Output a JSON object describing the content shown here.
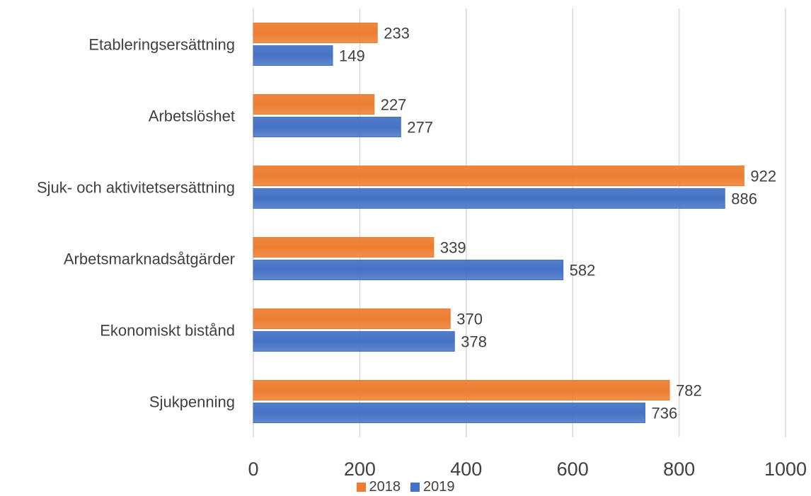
{
  "chart_data": {
    "type": "bar",
    "orientation": "horizontal",
    "categories": [
      "Etableringsersättning",
      "Arbetslöshet",
      "Sjuk- och aktivitetsersättning",
      "Arbetsmarknadsåtgärder",
      "Ekonomiskt bistånd",
      "Sjukpenning"
    ],
    "series": [
      {
        "name": "2018",
        "values": [
          233,
          227,
          922,
          339,
          370,
          782
        ],
        "color": "#ED7D31"
      },
      {
        "name": "2019",
        "values": [
          149,
          277,
          886,
          582,
          378,
          736
        ],
        "color": "#4472C4"
      }
    ],
    "xticks": [
      "0",
      "200",
      "400",
      "600",
      "800",
      "1000"
    ],
    "xlim": [
      0,
      1000
    ],
    "title": "",
    "xlabel": "",
    "ylabel": "",
    "grid": "vertical",
    "legend_position": "bottom",
    "data_labels": true
  }
}
